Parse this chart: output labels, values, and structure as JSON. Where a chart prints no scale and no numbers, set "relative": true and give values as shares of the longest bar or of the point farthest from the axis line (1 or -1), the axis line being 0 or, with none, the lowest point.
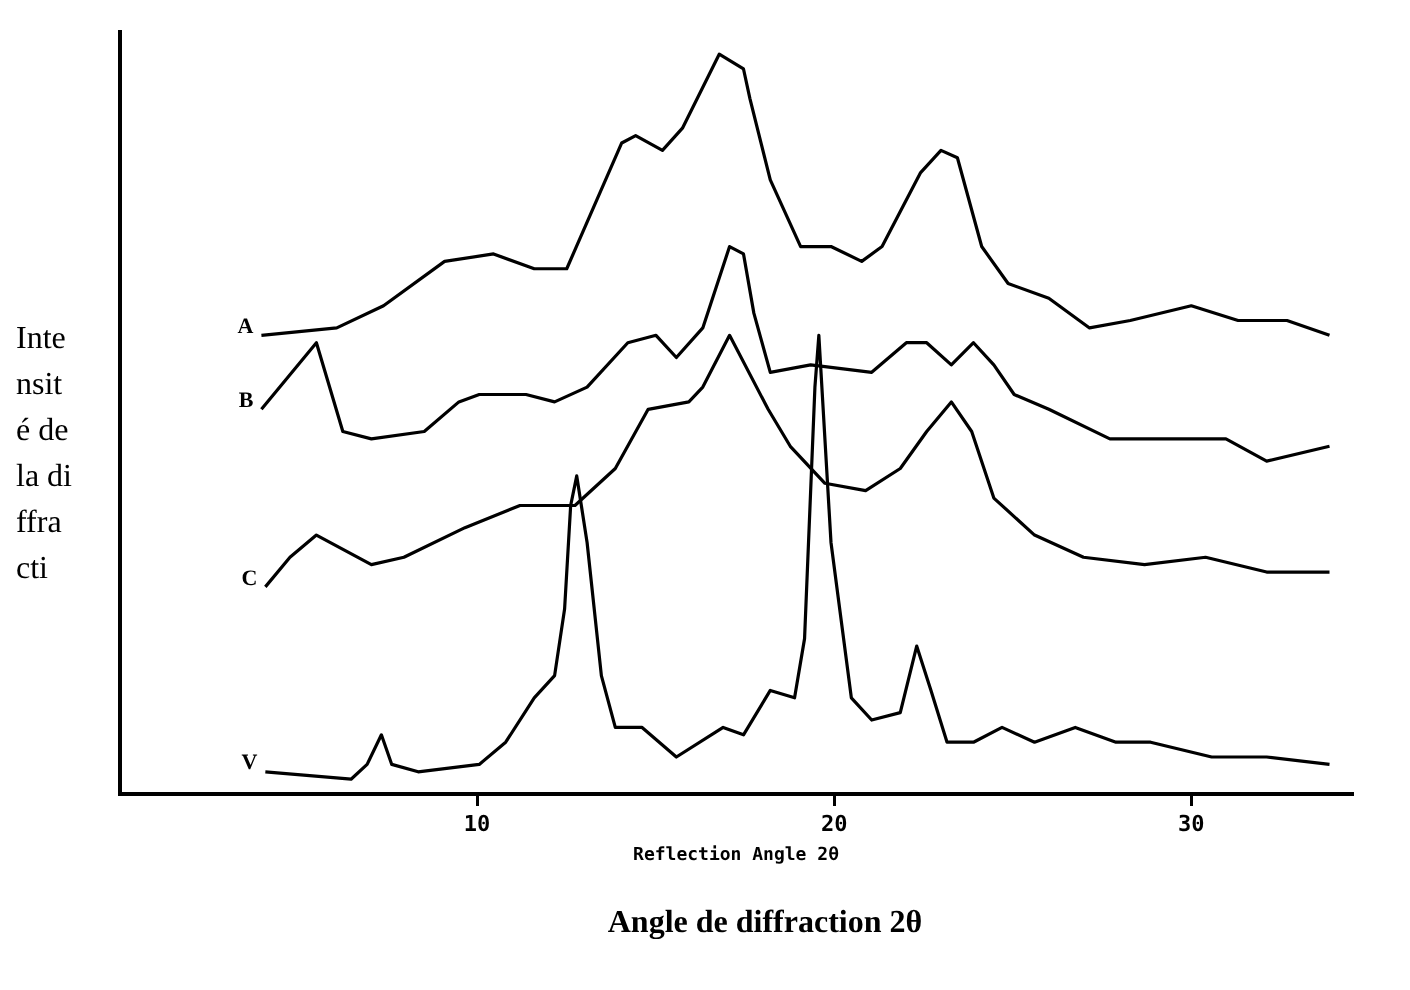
{
  "chart_data": {
    "type": "line",
    "relative": true,
    "xlabel": "Reflection Angle 2θ",
    "ylabel": "Intensité de la diffracti",
    "annotations": [
      "Angle de diffraction 2θ"
    ],
    "xlim": [
      0,
      34.5
    ],
    "xticks": [
      10,
      20,
      30
    ],
    "grid": false,
    "legend": false,
    "marker": "none",
    "line_style": "solid",
    "series": [
      {
        "name": "A",
        "color": "#000000",
        "x": [
          3.96,
          6.07,
          7.38,
          9.09,
          10.46,
          11.6,
          12.51,
          14.05,
          14.44,
          15.19,
          15.75,
          16.78,
          17.46,
          17.64,
          18.21,
          19.06,
          19.91,
          20.77,
          21.34,
          22.42,
          22.99,
          23.45,
          24.13,
          24.87,
          26.01,
          27.15,
          28.29,
          30,
          31.31,
          32.68,
          33.87
        ],
        "values": [
          0.62,
          0.63,
          0.66,
          0.72,
          0.73,
          0.71,
          0.71,
          0.88,
          0.89,
          0.87,
          0.9,
          1.0,
          0.98,
          0.94,
          0.83,
          0.74,
          0.74,
          0.72,
          0.74,
          0.84,
          0.87,
          0.86,
          0.74,
          0.69,
          0.67,
          0.63,
          0.64,
          0.66,
          0.64,
          0.64,
          0.62
        ]
      },
      {
        "name": "B",
        "color": "#000000",
        "x": [
          3.96,
          5.5,
          6.24,
          7.04,
          8.52,
          9.49,
          10.06,
          11.37,
          12.17,
          13.08,
          14.22,
          15.01,
          15.58,
          16.32,
          17.07,
          17.46,
          17.75,
          18.21,
          19.34,
          21.05,
          22.02,
          22.59,
          23.28,
          23.9,
          24.47,
          25.04,
          26.01,
          27.72,
          29.26,
          30.97,
          32.11,
          33.87
        ],
        "values": [
          0.52,
          0.61,
          0.49,
          0.48,
          0.49,
          0.53,
          0.54,
          0.54,
          0.53,
          0.55,
          0.61,
          0.62,
          0.59,
          0.63,
          0.74,
          0.73,
          0.65,
          0.57,
          0.58,
          0.57,
          0.61,
          0.61,
          0.58,
          0.61,
          0.58,
          0.54,
          0.52,
          0.48,
          0.48,
          0.48,
          0.45,
          0.47
        ]
      },
      {
        "name": "C",
        "color": "#000000",
        "x": [
          4.07,
          4.76,
          5.5,
          7.04,
          7.95,
          9.66,
          11.2,
          12.74,
          13.87,
          14.79,
          15.93,
          16.32,
          17.07,
          18.15,
          18.77,
          19.74,
          20.88,
          21.85,
          22.59,
          23.28,
          23.85,
          24.47,
          25.61,
          26.98,
          28.69,
          30.4,
          32.11,
          33.87
        ],
        "values": [
          0.28,
          0.32,
          0.35,
          0.31,
          0.32,
          0.36,
          0.39,
          0.39,
          0.44,
          0.52,
          0.53,
          0.55,
          0.62,
          0.52,
          0.47,
          0.42,
          0.41,
          0.44,
          0.49,
          0.53,
          0.49,
          0.4,
          0.35,
          0.32,
          0.31,
          0.32,
          0.3,
          0.3
        ]
      },
      {
        "name": "V",
        "color": "#000000",
        "x": [
          4.07,
          6.47,
          6.92,
          7.32,
          7.61,
          8.35,
          10.06,
          10.8,
          11.6,
          12.17,
          12.45,
          12.62,
          12.79,
          13.08,
          13.48,
          13.87,
          14.62,
          15.58,
          16.89,
          17.46,
          18.21,
          18.89,
          19.17,
          19.46,
          19.57,
          19.91,
          20.48,
          21.05,
          21.85,
          22.31,
          22.71,
          23.16,
          23.9,
          24.7,
          25.61,
          26.75,
          27.89,
          28.86,
          30.57,
          32.11,
          33.87
        ],
        "values": [
          0.03,
          0.02,
          0.04,
          0.08,
          0.04,
          0.03,
          0.04,
          0.07,
          0.13,
          0.16,
          0.25,
          0.39,
          0.43,
          0.34,
          0.16,
          0.09,
          0.09,
          0.05,
          0.09,
          0.08,
          0.14,
          0.13,
          0.21,
          0.55,
          0.62,
          0.34,
          0.13,
          0.1,
          0.11,
          0.2,
          0.14,
          0.07,
          0.07,
          0.09,
          0.07,
          0.09,
          0.07,
          0.07,
          0.05,
          0.05,
          0.04
        ]
      }
    ]
  }
}
